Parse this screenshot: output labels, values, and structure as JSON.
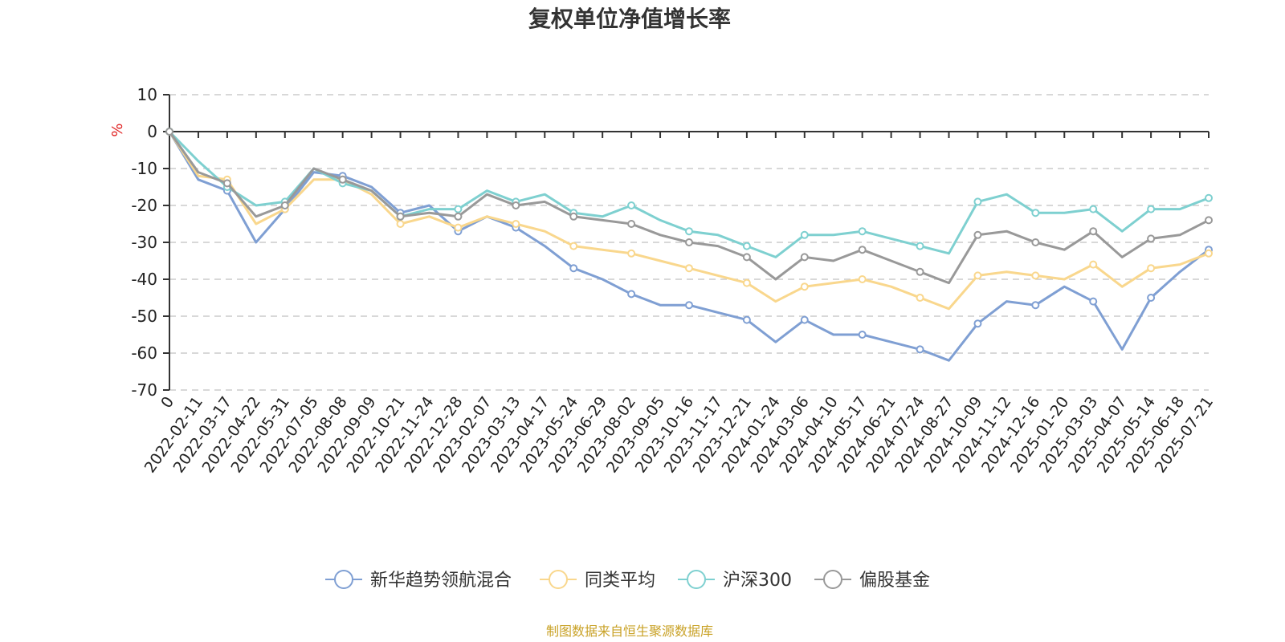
{
  "chart_data": {
    "type": "line",
    "title": "复权单位净值增长率",
    "ylabel": "%",
    "ylim": [
      -70,
      10
    ],
    "yticks": [
      10,
      0,
      -10,
      -20,
      -30,
      -40,
      -50,
      -60,
      -70
    ],
    "grid": true,
    "legend_position": "bottom",
    "x_tick_labels": [
      "0",
      "2022-02-11",
      "2022-03-17",
      "2022-04-22",
      "2022-05-31",
      "2022-07-05",
      "2022-08-08",
      "2022-09-09",
      "2022-10-21",
      "2022-11-24",
      "2022-12-28",
      "2023-02-07",
      "2023-03-13",
      "2023-04-17",
      "2023-05-24",
      "2023-06-29",
      "2023-08-02",
      "2023-09-05",
      "2023-10-16",
      "2023-11-17",
      "2023-12-21",
      "2024-01-24",
      "2024-03-06",
      "2024-04-10",
      "2024-05-17",
      "2024-06-21",
      "2024-07-24",
      "2024-08-27",
      "2024-10-09",
      "2024-11-12",
      "2024-12-16",
      "2025-01-20",
      "2025-03-03",
      "2025-04-07",
      "2025-05-14",
      "2025-06-18",
      "2025-07-21"
    ],
    "x": [
      "0",
      "2022-02-11",
      "2022-03-17",
      "2022-04-22",
      "2022-05-31",
      "2022-07-05",
      "2022-08-08",
      "2022-09-09",
      "2022-10-21",
      "2022-11-24",
      "2022-12-28",
      "2023-02-07",
      "2023-03-13",
      "2023-04-17",
      "2023-05-24",
      "2023-06-29",
      "2023-08-02",
      "2023-09-05",
      "2023-10-16",
      "2023-11-17",
      "2023-12-21",
      "2024-01-24",
      "2024-03-06",
      "2024-04-10",
      "2024-05-17",
      "2024-06-21",
      "2024-07-24",
      "2024-08-27",
      "2024-10-09",
      "2024-11-12",
      "2024-12-16",
      "2025-01-20",
      "2025-03-03",
      "2025-04-07",
      "2025-05-14",
      "2025-06-18",
      "2025-07-21"
    ],
    "series": [
      {
        "name": "新华趋势领航混合",
        "color": "#7f9fd3",
        "values": [
          0,
          -13,
          -16,
          -30,
          -21,
          -11,
          -12,
          -15,
          -22,
          -20,
          -27,
          -23,
          -26,
          -31,
          -37,
          -40,
          -44,
          -47,
          -47,
          -49,
          -51,
          -57,
          -51,
          -55,
          -55,
          -57,
          -59,
          -62,
          -52,
          -46,
          -47,
          -42,
          -46,
          -59,
          -45,
          -38,
          -32
        ]
      },
      {
        "name": "同类平均",
        "color": "#f9d78d",
        "values": [
          0,
          -12,
          -13,
          -25,
          -21,
          -13,
          -13,
          -17,
          -25,
          -23,
          -26,
          -23,
          -25,
          -27,
          -31,
          -32,
          -33,
          -35,
          -37,
          -39,
          -41,
          -46,
          -42,
          -41,
          -40,
          -42,
          -45,
          -48,
          -39,
          -38,
          -39,
          -40,
          -36,
          -42,
          -37,
          -36,
          -33
        ]
      },
      {
        "name": "沪深300",
        "color": "#7ed0d0",
        "values": [
          0,
          -8,
          -15,
          -20,
          -19,
          -10,
          -14,
          -16,
          -23,
          -21,
          -21,
          -16,
          -19,
          -17,
          -22,
          -23,
          -20,
          -24,
          -27,
          -28,
          -31,
          -34,
          -28,
          -28,
          -27,
          -29,
          -31,
          -33,
          -19,
          -17,
          -22,
          -22,
          -21,
          -27,
          -21,
          -21,
          -18
        ]
      },
      {
        "name": "偏股基金",
        "color": "#999999",
        "values": [
          0,
          -11,
          -14,
          -23,
          -20,
          -10,
          -13,
          -16,
          -23,
          -22,
          -23,
          -17,
          -20,
          -19,
          -23,
          -24,
          -25,
          -28,
          -30,
          -31,
          -34,
          -40,
          -34,
          -35,
          -32,
          -35,
          -38,
          -41,
          -28,
          -27,
          -30,
          -32,
          -27,
          -34,
          -29,
          -28,
          -24
        ]
      }
    ]
  },
  "legend": {
    "items": [
      "新华趋势领航混合",
      "同类平均",
      "沪深300",
      "偏股基金"
    ]
  },
  "footer": {
    "source": "制图数据来自恒生聚源数据库",
    "color": "#c9a227"
  },
  "colors": {
    "axis": "#333333",
    "grid": "#cccccc",
    "ylabel": "#e02020"
  }
}
